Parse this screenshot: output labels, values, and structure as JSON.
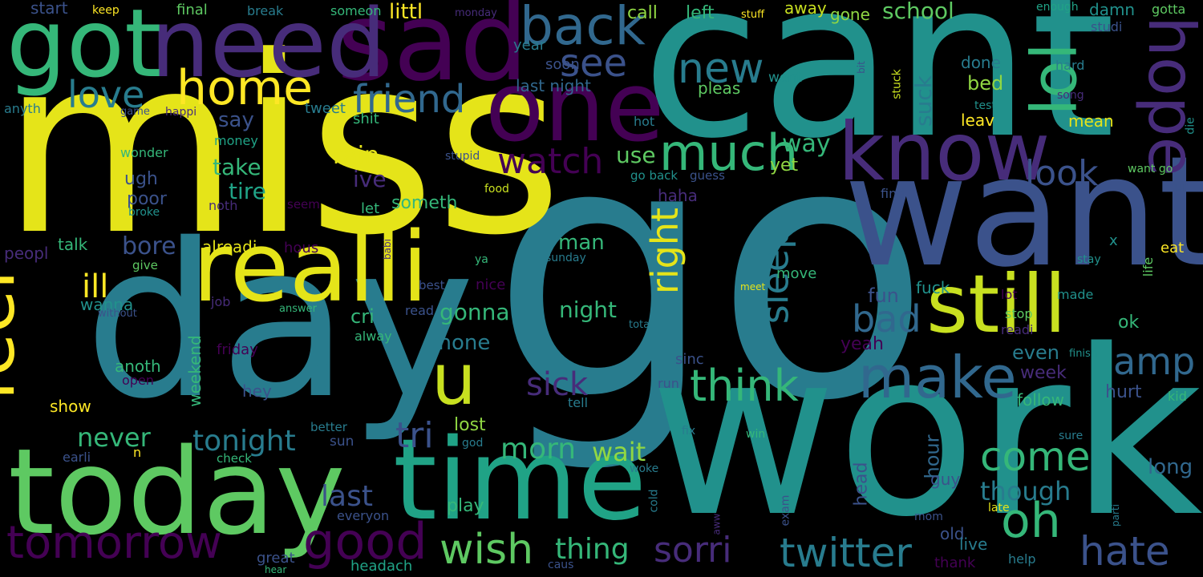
{
  "background": "#000000",
  "palette": {
    "dark_purple": "#440154",
    "purple": "#472c7a",
    "indigo": "#3b528b",
    "blue": "#31688e",
    "teal_blue": "#287c8e",
    "teal": "#21918c",
    "green_teal": "#20a386",
    "green": "#35b779",
    "light_green": "#5ec962",
    "lime": "#90d743",
    "yellow_green": "#c8e020",
    "yellow": "#e5e419",
    "bright_yellow": "#fde725"
  },
  "words": [
    {
      "text": "go",
      "color": "teal_blue"
    },
    {
      "text": "miss",
      "color": "yellow"
    },
    {
      "text": "cant",
      "color": "teal"
    },
    {
      "text": "work",
      "color": "teal"
    },
    {
      "text": "day",
      "color": "teal_blue"
    },
    {
      "text": "want",
      "color": "indigo"
    },
    {
      "text": "today",
      "color": "light_green"
    },
    {
      "text": "time",
      "color": "green_teal"
    },
    {
      "text": "sad",
      "color": "dark_purple"
    },
    {
      "text": "need",
      "color": "purple"
    },
    {
      "text": "got",
      "color": "green"
    },
    {
      "text": "realli",
      "color": "yellow"
    },
    {
      "text": "one",
      "color": "dark_purple"
    },
    {
      "text": "know",
      "color": "purple"
    },
    {
      "text": "still",
      "color": "yellow_green"
    },
    {
      "text": "home",
      "color": "bright_yellow"
    },
    {
      "text": "feel",
      "color": "bright_yellow"
    },
    {
      "text": "lol",
      "color": "green"
    },
    {
      "text": "hope",
      "color": "purple"
    },
    {
      "text": "back",
      "color": "blue"
    },
    {
      "text": "make",
      "color": "blue"
    },
    {
      "text": "u",
      "color": "yellow_green"
    },
    {
      "text": "much",
      "color": "green"
    },
    {
      "text": "tomorrow",
      "color": "dark_purple"
    },
    {
      "text": "good",
      "color": "dark_purple"
    },
    {
      "text": "wish",
      "color": "light_green"
    },
    {
      "text": "twitter",
      "color": "teal_blue"
    },
    {
      "text": "oh",
      "color": "green"
    },
    {
      "text": "hate",
      "color": "indigo"
    },
    {
      "text": "sorri",
      "color": "purple"
    },
    {
      "text": "think",
      "color": "green"
    },
    {
      "text": "come",
      "color": "green"
    },
    {
      "text": "new",
      "color": "teal_blue"
    },
    {
      "text": "see",
      "color": "indigo"
    },
    {
      "text": "friend",
      "color": "blue"
    },
    {
      "text": "love",
      "color": "teal_blue"
    },
    {
      "text": "watch",
      "color": "dark_purple"
    },
    {
      "text": "look",
      "color": "indigo"
    },
    {
      "text": "amp",
      "color": "blue"
    },
    {
      "text": "bad",
      "color": "blue"
    },
    {
      "text": "sleep",
      "color": "teal_blue"
    },
    {
      "text": "right",
      "color": "yellow"
    },
    {
      "text": "sick",
      "color": "purple"
    },
    {
      "text": "tri",
      "color": "indigo"
    },
    {
      "text": "tonight",
      "color": "teal_blue"
    },
    {
      "text": "never",
      "color": "green"
    },
    {
      "text": "ill",
      "color": "bright_yellow"
    },
    {
      "text": "thing",
      "color": "green"
    },
    {
      "text": "morn",
      "color": "green"
    },
    {
      "text": "wait",
      "color": "lime"
    },
    {
      "text": "last",
      "color": "indigo"
    },
    {
      "text": "play",
      "color": "green"
    },
    {
      "text": "though",
      "color": "teal_blue"
    },
    {
      "text": "school",
      "color": "light_green"
    },
    {
      "text": "call",
      "color": "lime"
    },
    {
      "text": "left",
      "color": "green"
    },
    {
      "text": "away",
      "color": "yellow_green"
    },
    {
      "text": "gone",
      "color": "lime"
    },
    {
      "text": "suck",
      "color": "teal_blue"
    },
    {
      "text": "bed",
      "color": "lime"
    },
    {
      "text": "leav",
      "color": "bright_yellow"
    },
    {
      "text": "way",
      "color": "green"
    },
    {
      "text": "yet",
      "color": "lime"
    },
    {
      "text": "use",
      "color": "light_green"
    },
    {
      "text": "take",
      "color": "green"
    },
    {
      "text": "tire",
      "color": "green_teal"
    },
    {
      "text": "say",
      "color": "indigo"
    },
    {
      "text": "rain",
      "color": "yellow"
    },
    {
      "text": "ive",
      "color": "purple"
    },
    {
      "text": "littl",
      "color": "bright_yellow"
    },
    {
      "text": "start",
      "color": "indigo"
    },
    {
      "text": "keep",
      "color": "bright_yellow"
    },
    {
      "text": "final",
      "color": "light_green"
    },
    {
      "text": "break",
      "color": "teal_blue"
    },
    {
      "text": "someon",
      "color": "green"
    },
    {
      "text": "monday",
      "color": "purple"
    },
    {
      "text": "stuff",
      "color": "bright_yellow"
    },
    {
      "text": "enough",
      "color": "green_teal"
    },
    {
      "text": "damn",
      "color": "teal"
    },
    {
      "text": "gotta",
      "color": "light_green"
    },
    {
      "text": "studi",
      "color": "indigo"
    },
    {
      "text": "year",
      "color": "teal_blue"
    },
    {
      "text": "soon",
      "color": "indigo"
    },
    {
      "text": "last night",
      "color": "blue"
    },
    {
      "text": "went",
      "color": "teal"
    },
    {
      "text": "done",
      "color": "teal_blue"
    },
    {
      "text": "hard",
      "color": "teal_blue"
    },
    {
      "text": "bit",
      "color": "indigo"
    },
    {
      "text": "stuck",
      "color": "yellow_green"
    },
    {
      "text": "song",
      "color": "purple"
    },
    {
      "text": "test",
      "color": "teal"
    },
    {
      "text": "mean",
      "color": "yellow"
    },
    {
      "text": "die",
      "color": "teal"
    },
    {
      "text": "want go",
      "color": "light_green"
    },
    {
      "text": "ur",
      "color": "indigo"
    },
    {
      "text": "pleas",
      "color": "light_green"
    },
    {
      "text": "tweet",
      "color": "teal_blue"
    },
    {
      "text": "hot",
      "color": "teal_blue"
    },
    {
      "text": "go back",
      "color": "teal"
    },
    {
      "text": "guess",
      "color": "indigo"
    },
    {
      "text": "anyth",
      "color": "teal_blue"
    },
    {
      "text": "game",
      "color": "indigo"
    },
    {
      "text": "happi",
      "color": "purple"
    },
    {
      "text": "shit",
      "color": "green"
    },
    {
      "text": "money",
      "color": "green_teal"
    },
    {
      "text": "wonder",
      "color": "green"
    },
    {
      "text": "stupid",
      "color": "indigo"
    },
    {
      "text": "food",
      "color": "yellow_green"
    },
    {
      "text": "find",
      "color": "indigo"
    },
    {
      "text": "ugh",
      "color": "indigo"
    },
    {
      "text": "poor",
      "color": "indigo"
    },
    {
      "text": "broke",
      "color": "teal"
    },
    {
      "text": "noth",
      "color": "purple"
    },
    {
      "text": "seem",
      "color": "dark_purple"
    },
    {
      "text": "let",
      "color": "green"
    },
    {
      "text": "someth",
      "color": "green"
    },
    {
      "text": "haha",
      "color": "purple"
    },
    {
      "text": "talk",
      "color": "green"
    },
    {
      "text": "bore",
      "color": "indigo"
    },
    {
      "text": "alreadi",
      "color": "yellow"
    },
    {
      "text": "hous",
      "color": "dark_purple"
    },
    {
      "text": "peopl",
      "color": "purple"
    },
    {
      "text": "give",
      "color": "light_green"
    },
    {
      "text": "babi",
      "color": "purple"
    },
    {
      "text": "man",
      "color": "green"
    },
    {
      "text": "ya",
      "color": "green"
    },
    {
      "text": "sunday",
      "color": "teal_blue"
    },
    {
      "text": "best",
      "color": "indigo"
    },
    {
      "text": "nice",
      "color": "dark_purple"
    },
    {
      "text": "wanna",
      "color": "teal"
    },
    {
      "text": "without",
      "color": "indigo"
    },
    {
      "text": "answer",
      "color": "green"
    },
    {
      "text": "job",
      "color": "purple"
    },
    {
      "text": "night",
      "color": "green"
    },
    {
      "text": "read",
      "color": "indigo"
    },
    {
      "text": "total",
      "color": "teal_blue"
    },
    {
      "text": "gonna",
      "color": "green"
    },
    {
      "text": "cri",
      "color": "green"
    },
    {
      "text": "alway",
      "color": "green"
    },
    {
      "text": "phone",
      "color": "teal_blue"
    },
    {
      "text": "friday",
      "color": "dark_purple"
    },
    {
      "text": "anoth",
      "color": "green"
    },
    {
      "text": "open",
      "color": "dark_purple"
    },
    {
      "text": "weekend",
      "color": "green"
    },
    {
      "text": "well",
      "color": "teal_blue"
    },
    {
      "text": "hey",
      "color": "indigo"
    },
    {
      "text": "show",
      "color": "bright_yellow"
    },
    {
      "text": "sinc",
      "color": "indigo"
    },
    {
      "text": "run",
      "color": "indigo"
    },
    {
      "text": "tell",
      "color": "teal_blue"
    },
    {
      "text": "meet",
      "color": "yellow"
    },
    {
      "text": "move",
      "color": "green"
    },
    {
      "text": "fuck",
      "color": "teal"
    },
    {
      "text": "fun",
      "color": "indigo"
    },
    {
      "text": "made",
      "color": "teal"
    },
    {
      "text": "lot",
      "color": "dark_purple"
    },
    {
      "text": "stop",
      "color": "light_green"
    },
    {
      "text": "readi",
      "color": "purple"
    },
    {
      "text": "yeah",
      "color": "dark_purple"
    },
    {
      "text": "even",
      "color": "teal_blue"
    },
    {
      "text": "finish",
      "color": "teal"
    },
    {
      "text": "week",
      "color": "purple"
    },
    {
      "text": "hurt",
      "color": "indigo"
    },
    {
      "text": "follow",
      "color": "green"
    },
    {
      "text": "ok",
      "color": "green"
    },
    {
      "text": "x",
      "color": "teal"
    },
    {
      "text": "eat",
      "color": "bright_yellow"
    },
    {
      "text": "life",
      "color": "light_green"
    },
    {
      "text": "stay",
      "color": "teal"
    },
    {
      "text": "kid",
      "color": "green"
    },
    {
      "text": "better",
      "color": "teal_blue"
    },
    {
      "text": "sun",
      "color": "indigo"
    },
    {
      "text": "lost",
      "color": "lime"
    },
    {
      "text": "god",
      "color": "teal_blue"
    },
    {
      "text": "earli",
      "color": "indigo"
    },
    {
      "text": "n",
      "color": "bright_yellow"
    },
    {
      "text": "check",
      "color": "green"
    },
    {
      "text": "fix",
      "color": "teal_blue"
    },
    {
      "text": "win",
      "color": "green"
    },
    {
      "text": "woke",
      "color": "teal_blue"
    },
    {
      "text": "cold",
      "color": "teal_blue"
    },
    {
      "text": "hour",
      "color": "blue"
    },
    {
      "text": "head",
      "color": "indigo"
    },
    {
      "text": "exam",
      "color": "indigo"
    },
    {
      "text": "guy",
      "color": "indigo"
    },
    {
      "text": "sure",
      "color": "teal_blue"
    },
    {
      "text": "long",
      "color": "blue"
    },
    {
      "text": "aww",
      "color": "purple"
    },
    {
      "text": "old",
      "color": "indigo"
    },
    {
      "text": "live",
      "color": "teal_blue"
    },
    {
      "text": "late",
      "color": "yellow"
    },
    {
      "text": "parti",
      "color": "teal_blue"
    },
    {
      "text": "mom",
      "color": "indigo"
    },
    {
      "text": "great",
      "color": "indigo"
    },
    {
      "text": "everyon",
      "color": "indigo"
    },
    {
      "text": "hear",
      "color": "green"
    },
    {
      "text": "headach",
      "color": "green_teal"
    },
    {
      "text": "caus",
      "color": "indigo"
    },
    {
      "text": "thank",
      "color": "dark_purple"
    },
    {
      "text": "help",
      "color": "teal_blue"
    }
  ]
}
